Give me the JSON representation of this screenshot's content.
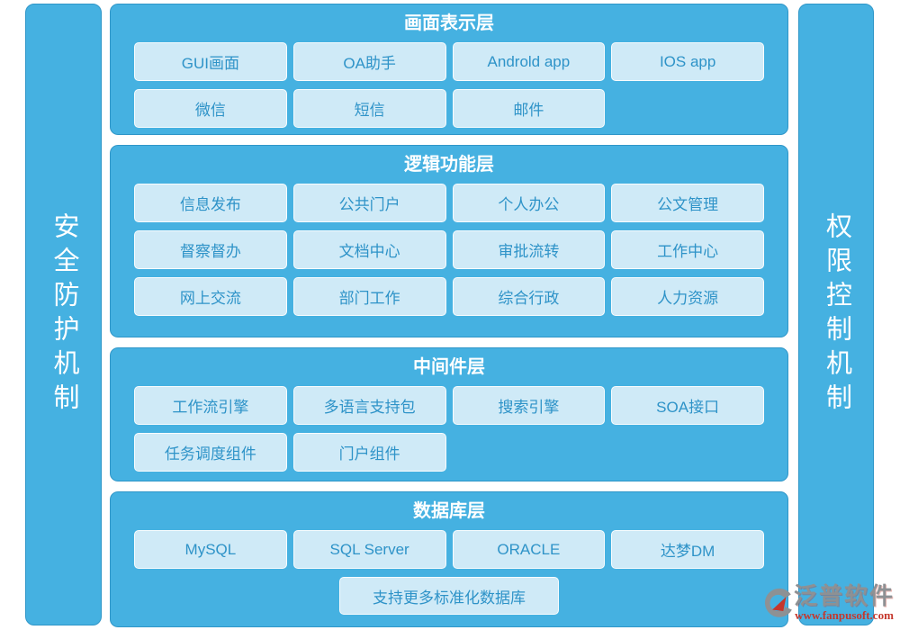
{
  "sidebars": {
    "left": {
      "label": "安全防护机制"
    },
    "right": {
      "label": "权限控制机制"
    }
  },
  "layers": [
    {
      "title": "画面表示层",
      "buttons": [
        "GUI画面",
        "OA助手",
        "Androld app",
        "IOS app",
        "微信",
        "短信",
        "邮件"
      ]
    },
    {
      "title": "逻辑功能层",
      "buttons": [
        "信息发布",
        "公共门户",
        "个人办公",
        "公文管理",
        "督察督办",
        "文档中心",
        "审批流转",
        "工作中心",
        "网上交流",
        "部门工作",
        "综合行政",
        "人力资源"
      ]
    },
    {
      "title": "中间件层",
      "buttons": [
        "工作流引擎",
        "多语言支持包",
        "搜索引擎",
        "SOA接口",
        "任务调度组件",
        "门户组件"
      ]
    },
    {
      "title": "数据库层",
      "buttons": [
        "MySQL",
        "SQL Server",
        "ORACLE",
        "达梦DM"
      ],
      "footer_button": "支持更多标准化数据库"
    }
  ],
  "logo": {
    "name": "泛普软件",
    "website": "www.fanpusoft.com"
  },
  "colors": {
    "panel_blue": "#45b1e1",
    "panel_border": "#2f96c8",
    "box_bg": "#cfeaf7",
    "box_text": "#2e93c8",
    "header_text": "#ffffff",
    "logo_gray": "#8d9194",
    "logo_red": "#c5372c"
  }
}
